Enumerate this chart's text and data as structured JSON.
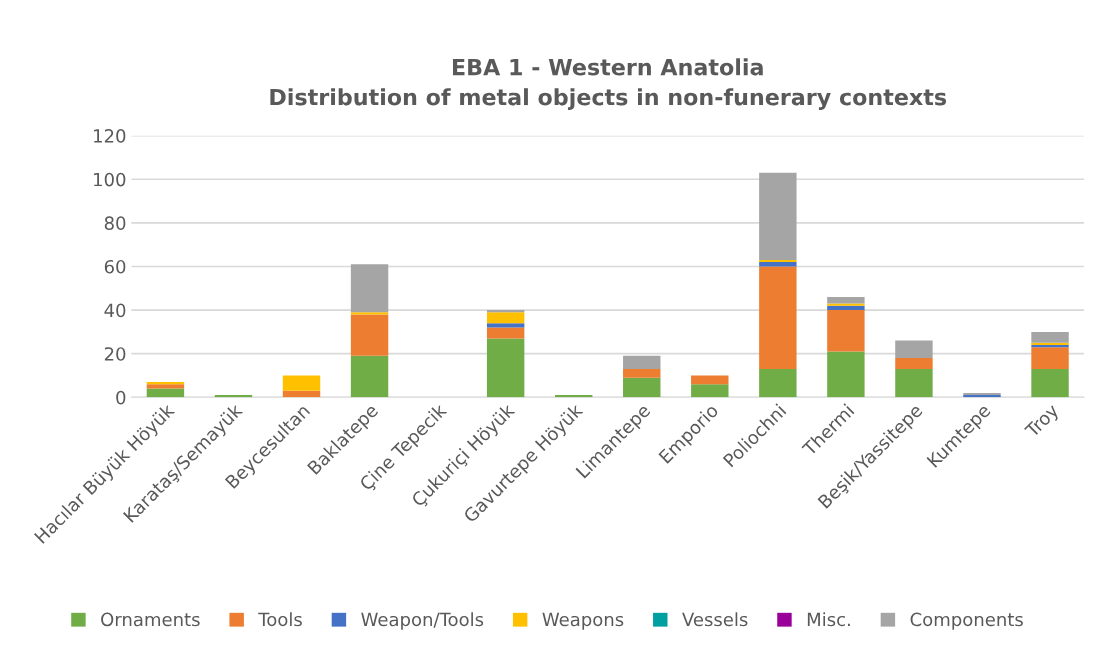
{
  "chart_data": {
    "type": "bar",
    "stacked": true,
    "title": "EBA 1 - Western Anatolia\nDistribution of metal objects in non-funerary contexts",
    "categories": [
      "Hacılar Büyük Höyük",
      "Karataş/Semayük",
      "Beycesultan",
      "Baklatepe",
      "Çine Tepecik",
      "Çukuriçi Höyük",
      "Gavurtepe Höyük",
      "Limantepe",
      "Emporio",
      "Poliochni",
      "Thermi",
      "Beşik/Yassitepe",
      "Kumtepe",
      "Troy"
    ],
    "series": [
      {
        "name": "Ornaments",
        "color": "#70ad47",
        "values": [
          4,
          1,
          0,
          19,
          0,
          27,
          1,
          9,
          6,
          13,
          21,
          13,
          0,
          13
        ]
      },
      {
        "name": "Tools",
        "color": "#ed7d31",
        "values": [
          2,
          0,
          3,
          19,
          0,
          5,
          0,
          4,
          4,
          47,
          19,
          5,
          0,
          10
        ]
      },
      {
        "name": "Weapon/Tools",
        "color": "#4472c4",
        "values": [
          0,
          0,
          0,
          0,
          0,
          2,
          0,
          0,
          0,
          2,
          2,
          0,
          1,
          1
        ]
      },
      {
        "name": "Weapons",
        "color": "#ffc000",
        "values": [
          1,
          0,
          7,
          1,
          0,
          5,
          0,
          0,
          0,
          1,
          1,
          0,
          0,
          1
        ]
      },
      {
        "name": "Vessels",
        "color": "#00a0a0",
        "values": [
          0,
          0,
          0,
          0,
          0,
          0,
          0,
          0,
          0,
          0,
          0,
          0,
          0,
          0
        ]
      },
      {
        "name": "Misc.",
        "color": "#990099",
        "values": [
          0,
          0,
          0,
          0,
          0,
          0,
          0,
          0,
          0,
          0,
          0,
          0,
          0,
          0
        ]
      },
      {
        "name": "Components",
        "color": "#a5a5a5",
        "values": [
          0,
          0,
          0,
          22,
          0,
          1,
          0,
          6,
          0,
          40,
          3,
          8,
          1,
          5
        ]
      }
    ],
    "ylim": [
      0,
      120
    ],
    "yticks": [
      0,
      20,
      40,
      60,
      80,
      100,
      120
    ],
    "grid": "y",
    "legend": "bottom"
  }
}
